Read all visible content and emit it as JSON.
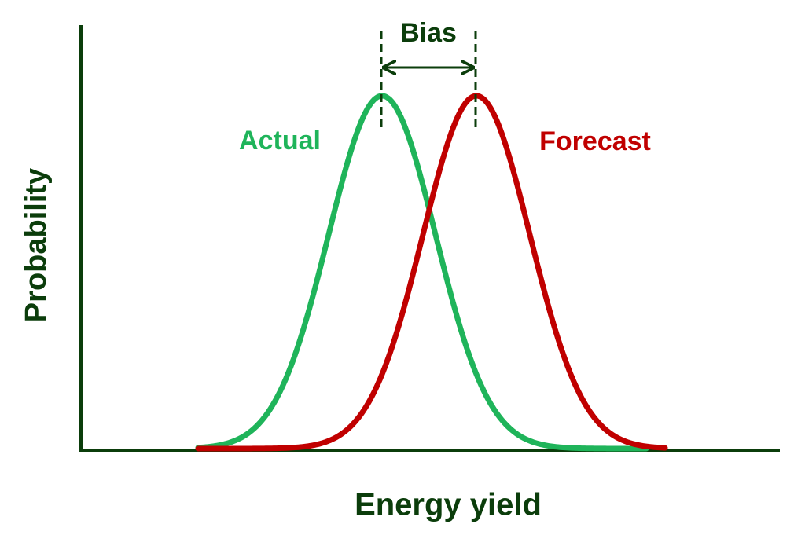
{
  "diagram": {
    "bias_label": "Bias",
    "actual_label": "Actual",
    "forecast_label": "Forecast",
    "y_axis_label": "Probability",
    "x_axis_label": "Energy yield"
  }
}
